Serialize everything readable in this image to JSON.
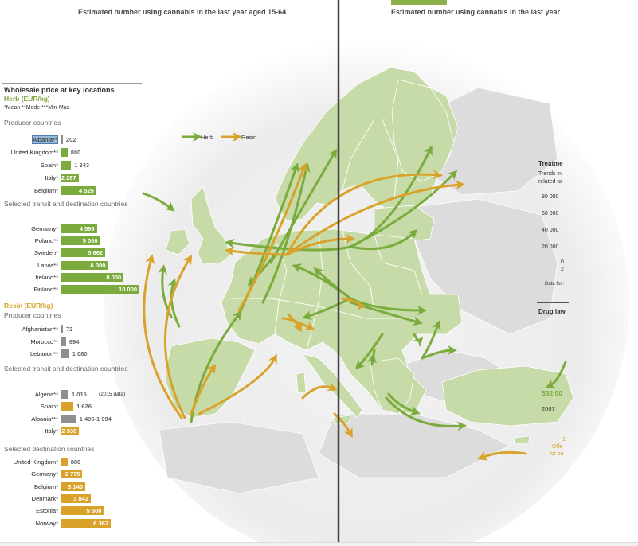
{
  "colors": {
    "herb": "#7aab3c",
    "resin": "#d9a32b",
    "grey": "#8e8e8e",
    "land": "#c7dba8",
    "land_other": "#dcdcdc",
    "sea": "#ffffff",
    "divider": "#444444"
  },
  "titles": {
    "left": "Estimated number using cannabis in the last year aged 15-64",
    "right": "Estimated number using cannabis in the last year a"
  },
  "panel": {
    "heading": "Wholesale price at key locations",
    "herb_heading": "Herb (EUR/kg)",
    "footnote": "*Mean  **Mode  ***Min-Max",
    "herb_producer_heading": "Producer countries",
    "herb_transit_heading": "Selected transit and destination countries",
    "resin_heading": "Resin (EUR/kg)",
    "resin_producer_heading": "Producer countries",
    "resin_transit_heading": "Selected transit and destination countries",
    "resin_dest_heading": "Selected destination countries"
  },
  "map_legend": {
    "herb": "Herb",
    "resin": "Resin"
  },
  "right_panel": {
    "treatment_title": "Treatme",
    "trends_line1": "Trends in",
    "trends_line2": "related to",
    "y_ticks": [
      "80 000",
      "60 000",
      "40 000",
      "20 000",
      "0"
    ],
    "year_start": "2",
    "data_note": "Data for :",
    "drug_title": "Drug law",
    "value_532": "532 00",
    "year_2007": "2007",
    "offence_1": "1",
    "offence_2": "Offe",
    "offence_3": "for su"
  },
  "chart_data": {
    "type": "bar",
    "title": "Wholesale price at key locations",
    "unit": "EUR/kg",
    "groups": [
      {
        "name": "Herb (EUR/kg)",
        "section": "Producer countries",
        "bars": [
          {
            "label": "Albania**",
            "value": "202",
            "num": 202,
            "color": "grey"
          },
          {
            "label": "United Kingdom**",
            "value": "880",
            "num": 880,
            "color": "herb"
          },
          {
            "label": "Spain*",
            "value": "1 343",
            "num": 1343,
            "color": "herb"
          },
          {
            "label": "Italy*",
            "value": "2 287",
            "num": 2287,
            "color": "herb"
          },
          {
            "label": "Belgium*",
            "value": "4 525",
            "num": 4525,
            "color": "herb"
          }
        ]
      },
      {
        "name": "Herb (EUR/kg)",
        "section": "Selected transit and destination countries",
        "bars": [
          {
            "label": "Germany*",
            "value": "4 599",
            "num": 4599,
            "color": "herb"
          },
          {
            "label": "Poland**",
            "value": "5 000",
            "num": 5000,
            "color": "herb"
          },
          {
            "label": "Sweden*",
            "value": "5 662",
            "num": 5662,
            "color": "herb"
          },
          {
            "label": "Latvia**",
            "value": "6 000",
            "num": 6000,
            "color": "herb"
          },
          {
            "label": "Ireland**",
            "value": "8 000",
            "num": 8000,
            "color": "herb"
          },
          {
            "label": "Finland**",
            "value": "10 000",
            "num": 10000,
            "color": "herb"
          }
        ]
      },
      {
        "name": "Resin (EUR/kg)",
        "section": "Producer countries",
        "bars": [
          {
            "label": "Afghanistan**",
            "value": "72",
            "num": 72,
            "color": "grey"
          },
          {
            "label": "Morocco**",
            "value": "694",
            "num": 694,
            "color": "grey"
          },
          {
            "label": "Lebanon**",
            "value": "1 080",
            "num": 1080,
            "color": "grey"
          }
        ]
      },
      {
        "name": "Resin (EUR/kg)",
        "section": "Selected transit and destination countries",
        "bars": [
          {
            "label": "Algeria**",
            "value": "1 016",
            "num": 1016,
            "color": "grey",
            "note": "(2015 data)"
          },
          {
            "label": "Spain*",
            "value": "1 626",
            "num": 1626,
            "color": "resin"
          },
          {
            "label": "Albania***",
            "value": "1 495-1 994",
            "num": 1994,
            "color": "grey"
          },
          {
            "label": "Italy*",
            "value": "2 338",
            "num": 2338,
            "color": "resin"
          }
        ]
      },
      {
        "name": "Resin (EUR/kg)",
        "section": "Selected destination countries",
        "bars": [
          {
            "label": "United Kingdom*",
            "value": "880",
            "num": 880,
            "color": "resin"
          },
          {
            "label": "Germany*",
            "value": "2 775",
            "num": 2775,
            "color": "resin"
          },
          {
            "label": "Belgium*",
            "value": "3 140",
            "num": 3140,
            "color": "resin"
          },
          {
            "label": "Denmark*",
            "value": "3 842",
            "num": 3842,
            "color": "resin"
          },
          {
            "label": "Estonia*",
            "value": "5 500",
            "num": 5500,
            "color": "resin"
          },
          {
            "label": "Norway*",
            "value": "6 367",
            "num": 6367,
            "color": "resin"
          }
        ]
      }
    ]
  }
}
